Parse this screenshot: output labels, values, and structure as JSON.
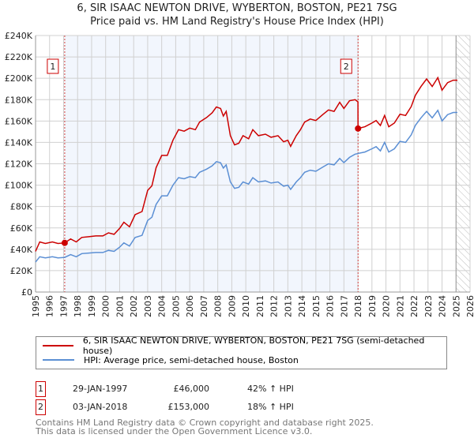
{
  "chart_data": {
    "type": "line",
    "title": "6, SIR ISAAC NEWTON DRIVE, WYBERTON, BOSTON, PE21 7SG",
    "subtitle": "Price paid vs. HM Land Registry's House Price Index (HPI)",
    "xlim": [
      1995,
      2026
    ],
    "ylim": [
      0,
      240000
    ],
    "y_ticks": [
      0,
      20000,
      40000,
      60000,
      80000,
      100000,
      120000,
      140000,
      160000,
      180000,
      200000,
      220000,
      240000
    ],
    "y_tick_labels": [
      "£0",
      "£20K",
      "£40K",
      "£60K",
      "£80K",
      "£100K",
      "£120K",
      "£140K",
      "£160K",
      "£180K",
      "£200K",
      "£220K",
      "£240K"
    ],
    "x_ticks": [
      1995,
      1996,
      1997,
      1998,
      1999,
      2000,
      2001,
      2002,
      2003,
      2004,
      2005,
      2006,
      2007,
      2008,
      2009,
      2010,
      2011,
      2012,
      2013,
      2014,
      2015,
      2016,
      2017,
      2018,
      2019,
      2020,
      2021,
      2022,
      2023,
      2024,
      2025,
      2026
    ],
    "grid": true,
    "forecast_hatch_from": 2025.0,
    "shaded_between": [
      1997.08,
      2018.01
    ],
    "x": [
      1995.0,
      1995.3,
      1995.7,
      1996.2,
      1996.6,
      1997.08,
      1997.5,
      1997.9,
      1998.3,
      1998.8,
      1999.3,
      1999.8,
      2000.2,
      2000.6,
      2001.0,
      2001.3,
      2001.7,
      2002.1,
      2002.6,
      2003.0,
      2003.3,
      2003.6,
      2004.0,
      2004.4,
      2004.8,
      2005.2,
      2005.6,
      2006.0,
      2006.4,
      2006.7,
      2007.2,
      2007.6,
      2007.9,
      2008.2,
      2008.4,
      2008.6,
      2008.9,
      2009.2,
      2009.5,
      2009.8,
      2010.2,
      2010.5,
      2010.9,
      2011.4,
      2011.8,
      2012.3,
      2012.7,
      2013.0,
      2013.2,
      2013.6,
      2013.9,
      2014.2,
      2014.6,
      2015.0,
      2015.5,
      2015.9,
      2016.3,
      2016.7,
      2017.0,
      2017.4,
      2017.8,
      2018.0,
      2018.01,
      2018.5,
      2019.0,
      2019.3,
      2019.6,
      2019.9,
      2020.2,
      2020.6,
      2021.0,
      2021.4,
      2021.8,
      2022.1,
      2022.5,
      2022.9,
      2023.3,
      2023.7,
      2024.0,
      2024.4,
      2024.8,
      2025.1
    ],
    "series": [
      {
        "name": "6, SIR ISAAC NEWTON DRIVE, WYBERTON, BOSTON, PE21 7SG (semi-detached house)",
        "color": "#cc0000",
        "values": [
          38000,
          46900,
          45400,
          46900,
          45400,
          46000,
          49700,
          46900,
          51100,
          51800,
          52500,
          52500,
          55400,
          54000,
          59600,
          65300,
          61100,
          72400,
          75300,
          95100,
          99400,
          116400,
          127800,
          127800,
          142000,
          151900,
          150500,
          153400,
          151900,
          159000,
          163300,
          167600,
          173200,
          171800,
          164700,
          169000,
          146300,
          137700,
          139200,
          146300,
          143400,
          151900,
          146300,
          147700,
          144800,
          146300,
          140600,
          142000,
          136300,
          146300,
          151900,
          159000,
          161900,
          160500,
          166100,
          170400,
          169000,
          177500,
          171800,
          178900,
          180000,
          178000,
          153000,
          154600,
          158100,
          160500,
          155800,
          165200,
          154600,
          158100,
          166400,
          165200,
          173500,
          184100,
          192300,
          199400,
          192300,
          200600,
          188800,
          195900,
          198200,
          198200
        ]
      },
      {
        "name": "HPI: Average price, semi-detached house, Boston",
        "color": "#5b8fd4",
        "values": [
          28000,
          33000,
          32000,
          33000,
          32000,
          32400,
          35000,
          33000,
          36000,
          36500,
          37000,
          37000,
          39000,
          38000,
          42000,
          46000,
          43000,
          51000,
          53000,
          67000,
          70000,
          82000,
          90000,
          90000,
          100000,
          107000,
          106000,
          108000,
          107000,
          112000,
          115000,
          118000,
          122000,
          121000,
          116000,
          119000,
          103000,
          97000,
          98000,
          103000,
          101000,
          107000,
          103000,
          104000,
          102000,
          103000,
          99000,
          100000,
          96000,
          103000,
          107000,
          112000,
          114000,
          113000,
          117000,
          120000,
          119000,
          125000,
          121000,
          126000,
          129000,
          129500,
          129700,
          131000,
          134000,
          136000,
          132000,
          140000,
          131000,
          134000,
          141000,
          140000,
          147000,
          156000,
          163000,
          169000,
          163000,
          170000,
          160000,
          166000,
          168000,
          168000
        ]
      }
    ],
    "annotations": [
      {
        "label": "1",
        "x": 1997.08,
        "y": 46000
      },
      {
        "label": "2",
        "x": 2018.01,
        "y": 153000
      }
    ]
  },
  "transactions": [
    {
      "num": "1",
      "date": "29-JAN-1997",
      "price": "£46,000",
      "hpi": "42% ↑ HPI"
    },
    {
      "num": "2",
      "date": "03-JAN-2018",
      "price": "£153,000",
      "hpi": "18% ↑ HPI"
    }
  ],
  "footer": {
    "line1": "Contains HM Land Registry data © Crown copyright and database right 2025.",
    "line2": "This data is licensed under the Open Government Licence v3.0."
  }
}
